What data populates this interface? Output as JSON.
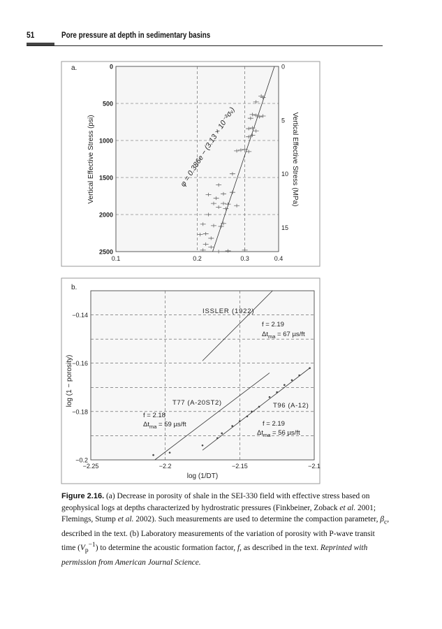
{
  "header": {
    "page_number": "51",
    "running_title": "Pore pressure at depth in sedimentary basins"
  },
  "chart_data": [
    {
      "type": "scatter",
      "panel_label": "a.",
      "xlabel": "",
      "ylabel": "Vertical Effective Stress (psi)",
      "ylabel_right": "Vertical Effective Stress (MPa)",
      "xscale": "log",
      "xlim": [
        0.1,
        0.4
      ],
      "ylim": [
        0,
        2500
      ],
      "y_inverted": true,
      "x_ticks": [
        "0.1",
        "0.2",
        "0.3",
        "0.4"
      ],
      "x_tick_values": [
        0.1,
        0.2,
        0.3,
        0.4
      ],
      "y_ticks": [
        "0",
        "500",
        "1000",
        "1500",
        "2000",
        "2500"
      ],
      "y_tick_values": [
        0,
        500,
        1000,
        1500,
        2000,
        2500
      ],
      "y_right_ticks": [
        "0",
        "5",
        "10",
        "15"
      ],
      "y_right_tick_values": [
        0,
        5,
        10,
        15
      ],
      "grid": true,
      "annotation": "φ = 0.386e − (3.13 × 10⁻²σᵥ)",
      "fit_line": [
        [
          0.228,
          2500
        ],
        [
          0.386,
          0
        ]
      ],
      "points": [
        [
          0.35,
          420
        ],
        [
          0.345,
          400
        ],
        [
          0.33,
          480
        ],
        [
          0.32,
          650
        ],
        [
          0.33,
          660
        ],
        [
          0.34,
          680
        ],
        [
          0.315,
          700
        ],
        [
          0.35,
          670
        ],
        [
          0.31,
          840
        ],
        [
          0.32,
          830
        ],
        [
          0.33,
          870
        ],
        [
          0.31,
          950
        ],
        [
          0.32,
          930
        ],
        [
          0.29,
          1130
        ],
        [
          0.3,
          1120
        ],
        [
          0.31,
          1150
        ],
        [
          0.28,
          1140
        ],
        [
          0.27,
          1450
        ],
        [
          0.24,
          1600
        ],
        [
          0.25,
          1720
        ],
        [
          0.27,
          1700
        ],
        [
          0.22,
          1730
        ],
        [
          0.235,
          1780
        ],
        [
          0.25,
          1850
        ],
        [
          0.26,
          1860
        ],
        [
          0.28,
          1880
        ],
        [
          0.23,
          1850
        ],
        [
          0.24,
          1900
        ],
        [
          0.255,
          1920
        ],
        [
          0.22,
          2000
        ],
        [
          0.21,
          2130
        ],
        [
          0.23,
          2150
        ],
        [
          0.245,
          2160
        ],
        [
          0.25,
          2120
        ],
        [
          0.205,
          2270
        ],
        [
          0.215,
          2400
        ],
        [
          0.225,
          2440
        ],
        [
          0.21,
          2480
        ],
        [
          0.24,
          2500
        ],
        [
          0.26,
          2490
        ],
        [
          0.3,
          2480
        ],
        [
          0.215,
          2260
        ],
        [
          0.225,
          2320
        ]
      ]
    },
    {
      "type": "line",
      "panel_label": "b.",
      "xlabel": "log (1/DT)",
      "ylabel": "log (1 − porosity)",
      "xlim": [
        -2.25,
        -2.1
      ],
      "ylim": [
        -0.2,
        -0.13
      ],
      "x_ticks": [
        "−2.25",
        "−2.2",
        "−2.15",
        "−2.1"
      ],
      "x_tick_values": [
        -2.25,
        -2.2,
        -2.15,
        -2.1
      ],
      "y_ticks": [
        "−0.14",
        "−0.16",
        "−0.18",
        "−0.2"
      ],
      "y_tick_values": [
        -0.14,
        -0.16,
        -0.18,
        -0.2
      ],
      "grid": true,
      "series": [
        {
          "name": "ISSLER (1922)",
          "line": [
            [
              -2.175,
              -0.159
            ],
            [
              -2.128,
              -0.13
            ]
          ],
          "f": "f = 2.19",
          "dt": {
            "pre": "Δt",
            "sub": "ma",
            "post": " = 67 µs/ft"
          }
        },
        {
          "name": "T77 (A-20ST2)",
          "line": [
            [
              -2.207,
              -0.2
            ],
            [
              -2.13,
              -0.164
            ]
          ],
          "f": "f = 2.18",
          "dt": {
            "pre": "Δt",
            "sub": "ma",
            "post": " = 59 µs/ft"
          }
        },
        {
          "name": "T96 (A-12)",
          "line": [
            [
              -2.175,
              -0.196
            ],
            [
              -2.103,
              -0.162
            ]
          ],
          "f": "f = 2.19",
          "dt": {
            "pre": "Δt",
            "sub": "ma",
            "post": " = 56 µs/ft"
          }
        }
      ],
      "points": [
        [
          -2.103,
          -0.162
        ],
        [
          -2.11,
          -0.165
        ],
        [
          -2.115,
          -0.167
        ],
        [
          -2.12,
          -0.169
        ],
        [
          -2.125,
          -0.172
        ],
        [
          -2.13,
          -0.174
        ],
        [
          -2.137,
          -0.178
        ],
        [
          -2.142,
          -0.18
        ],
        [
          -2.145,
          -0.182
        ],
        [
          -2.15,
          -0.184
        ],
        [
          -2.155,
          -0.186
        ],
        [
          -2.162,
          -0.189
        ],
        [
          -2.165,
          -0.191
        ],
        [
          -2.175,
          -0.194
        ],
        [
          -2.197,
          -0.197
        ],
        [
          -2.208,
          -0.198
        ]
      ]
    }
  ],
  "caption": {
    "label": "Figure 2.16.",
    "t1": " (a) Decrease in porosity of shale in the SEI-330 field with effective stress based on geophysical logs at depths characterized by hydrostratic pressures (Finkbeiner, Zoback ",
    "etal1": "et al.",
    "t2": " 2001; Flemings, Stump ",
    "etal2": "et al.",
    "t3": " 2002). Such measurements are used to determine the compaction parameter, ",
    "beta": "β",
    "beta_sub": "c",
    "t4": ", described in the text. (b) Laboratory measurements of the variation of porosity with P-wave transit time (",
    "vp": "V",
    "vp_sup": "−1",
    "vp_sub": "p",
    "t5": ") to determine the acoustic formation factor, ",
    "f": "f",
    "t6": ", as described in the text. ",
    "credit": "Reprinted with permission from American Journal Science."
  }
}
